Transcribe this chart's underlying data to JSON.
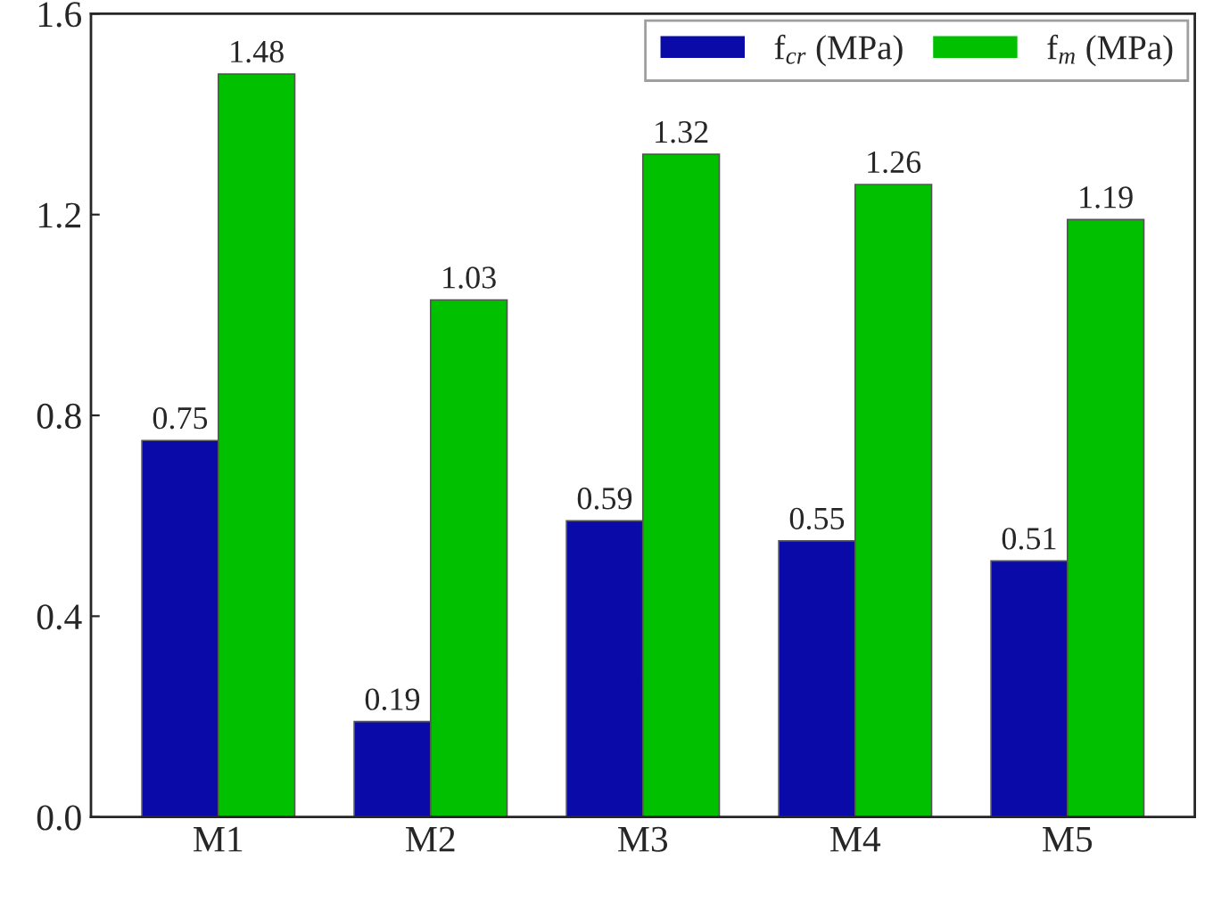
{
  "chart_data": {
    "type": "bar",
    "categories": [
      "M1",
      "M2",
      "M3",
      "M4",
      "M5"
    ],
    "series": [
      {
        "name": "f$_{cr}$ (MPa)",
        "color": "#0a0aa8",
        "values": [
          0.75,
          0.19,
          0.59,
          0.55,
          0.51
        ]
      },
      {
        "name": "f$_{m}$ (MPa)",
        "color": "#00c000",
        "values": [
          1.48,
          1.03,
          1.32,
          1.26,
          1.19
        ]
      }
    ],
    "ylim": [
      0.0,
      1.6
    ],
    "yticks": [
      {
        "value": 0.0,
        "label": "0.0"
      },
      0.4,
      0.8,
      1.2,
      1.6
    ],
    "data_labels": true,
    "legend": "top right",
    "grid": false
  }
}
